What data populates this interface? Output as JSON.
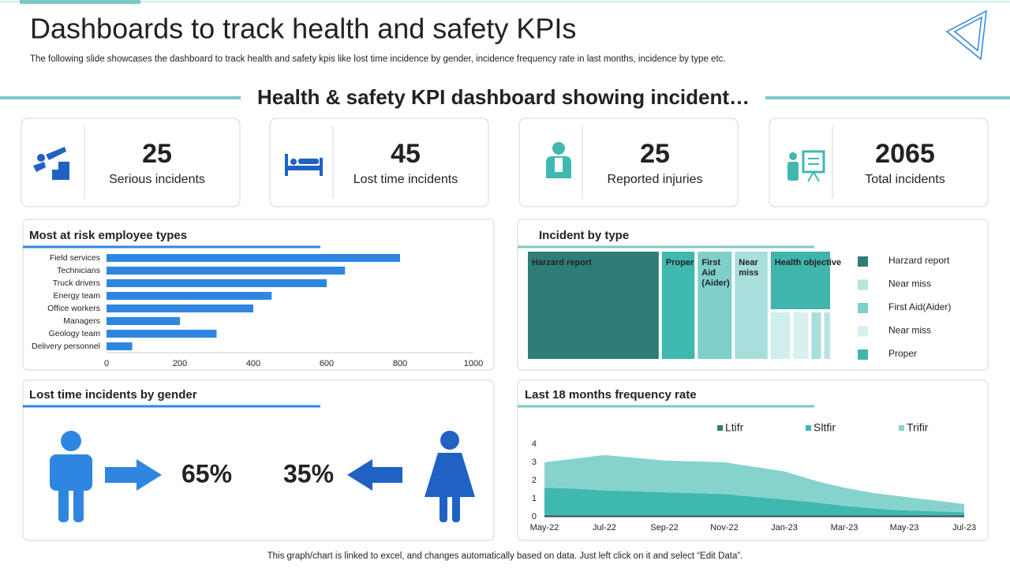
{
  "header": {
    "title": "Dashboards to track health and safety KPIs",
    "subtitle": "The following  slide showcases the dashboard  to track health  and  safety  kpis like lost time incidence  by gender,  incidence frequency  rate  in last  months, incidence by type etc.",
    "section_title": "Health & safety KPI dashboard showing incident…"
  },
  "kpis": [
    {
      "value": 25,
      "label": "Serious incidents"
    },
    {
      "value": 45,
      "label": "Lost time incidents"
    },
    {
      "value": 25,
      "label": "Reported injuries"
    },
    {
      "value": 2065,
      "label": "Total incidents"
    }
  ],
  "chart_data": [
    {
      "type": "bar",
      "orientation": "horizontal",
      "title": "Most at risk employee types",
      "categories": [
        "Field services",
        "Technicians",
        "Truck drivers",
        "Energy team",
        "Office workers",
        "Managers",
        "Geology team",
        "Delivery personnel"
      ],
      "values": [
        800,
        650,
        600,
        450,
        400,
        200,
        300,
        70
      ],
      "color": "#2f86e0",
      "xlim": [
        0,
        1000
      ],
      "xticks": [
        0,
        200,
        400,
        600,
        800,
        1000
      ],
      "grid": false
    },
    {
      "type": "treemap",
      "title": "Incident by type",
      "categories": [
        "Harzard report",
        "Proper",
        "First Aid (Aider)",
        "Near miss",
        "Health objective",
        null,
        null,
        null,
        null
      ],
      "values": [
        224,
        60,
        62,
        60,
        60,
        16,
        13,
        9,
        6.5
      ],
      "colors": [
        "#2f7d78",
        "#3fb8b0",
        "#7fcfca",
        "#a8dedb",
        "#40b5ad",
        "#d0eeec",
        "#d8f1ef",
        "#a8dedb",
        "#b8e5e2"
      ],
      "legend": [
        {
          "name": "Harzard report",
          "color": "#2f7d78"
        },
        {
          "name": "Near miss",
          "color": "#b5e3e0"
        },
        {
          "name": "First Aid(Aider)",
          "color": "#7fcfca"
        },
        {
          "name": "Near miss",
          "color": "#d5f0ee"
        },
        {
          "name": "Proper",
          "color": "#40b5ad"
        }
      ]
    },
    {
      "type": "pictogram",
      "title": "Lost time incidents by gender",
      "values": [
        65,
        35
      ],
      "value_labels": [
        "65%",
        "35%"
      ],
      "colors": [
        "#2f86e0",
        "#1f62c4"
      ]
    },
    {
      "type": "area",
      "stacked": true,
      "title": "Last 18 months frequency rate",
      "categories": [
        "May-22",
        null,
        "Jul-22",
        null,
        "Sep-22",
        null,
        "Nov-22",
        null,
        "Jan-23",
        null,
        "Mar-23",
        null,
        "May-23",
        null,
        "Jul-23"
      ],
      "series": [
        {
          "name": "Ltifr",
          "color": "#2f7d78",
          "values": [
            0.1,
            0.1,
            0.1,
            0.1,
            0.1,
            0.1,
            0.1,
            0.1,
            0.1,
            0.1,
            0.1,
            0.1,
            0.1,
            0.1,
            0.1
          ]
        },
        {
          "name": "Sltfir",
          "color": "#3fb8b0",
          "values": [
            1.5,
            1.45,
            1.35,
            1.3,
            1.25,
            1.2,
            1.15,
            1.0,
            0.85,
            0.7,
            0.5,
            0.35,
            0.25,
            0.2,
            0.15
          ]
        },
        {
          "name": "Trifir",
          "color": "#86d3cd",
          "values": [
            1.4,
            1.65,
            1.95,
            1.85,
            1.75,
            1.75,
            1.75,
            1.65,
            1.55,
            1.2,
            1.0,
            0.85,
            0.75,
            0.6,
            0.45
          ]
        }
      ],
      "ylim": [
        0,
        4
      ],
      "yticks": [
        0,
        1,
        2,
        3,
        4
      ],
      "legend": "top"
    }
  ],
  "footer": "This graph/chart is linked to excel,  and changes automatically based on data. Just left click on it and select “Edit Data”."
}
